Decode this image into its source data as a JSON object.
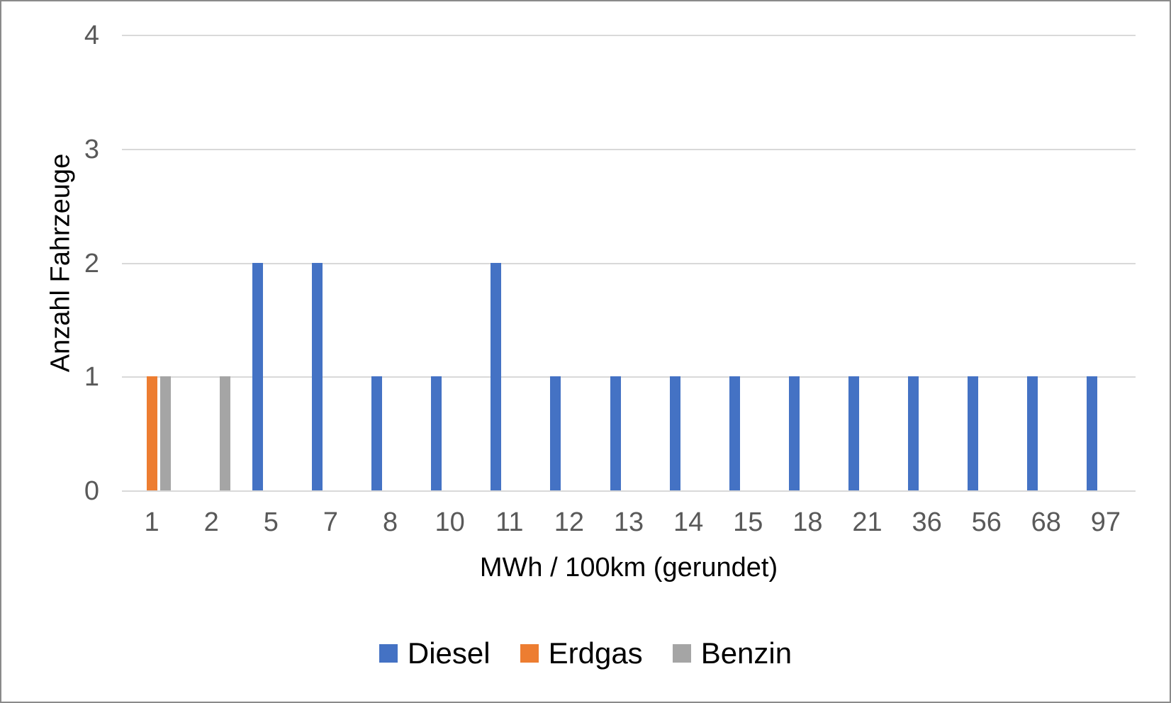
{
  "chart_data": {
    "type": "bar",
    "categories": [
      "1",
      "2",
      "5",
      "7",
      "8",
      "10",
      "11",
      "12",
      "13",
      "14",
      "15",
      "18",
      "21",
      "36",
      "56",
      "68",
      "97"
    ],
    "series": [
      {
        "name": "Diesel",
        "color": "#4472C4",
        "values": [
          0,
          0,
          2,
          2,
          1,
          1,
          2,
          1,
          1,
          1,
          1,
          1,
          1,
          1,
          1,
          1,
          1
        ]
      },
      {
        "name": "Erdgas",
        "color": "#ED7D31",
        "values": [
          1,
          0,
          0,
          0,
          0,
          0,
          0,
          0,
          0,
          0,
          0,
          0,
          0,
          0,
          0,
          0,
          0
        ]
      },
      {
        "name": "Benzin",
        "color": "#A5A5A5",
        "values": [
          1,
          1,
          0,
          0,
          0,
          0,
          0,
          0,
          0,
          0,
          0,
          0,
          0,
          0,
          0,
          0,
          0
        ]
      }
    ],
    "xlabel": "MWh / 100km (gerundet)",
    "ylabel": "Anzahl Fahrzeuge",
    "ylim": [
      0,
      4
    ],
    "yticks": [
      4,
      3,
      2,
      1,
      0
    ],
    "grid": true,
    "legend_position": "bottom",
    "colors": {
      "tick_label": "#595959",
      "gridline": "#D9D9D9",
      "axis_title": "#000000",
      "legend_text": "#000000",
      "frame_border": "#8A8A8A",
      "background": "#FFFFFF"
    }
  }
}
